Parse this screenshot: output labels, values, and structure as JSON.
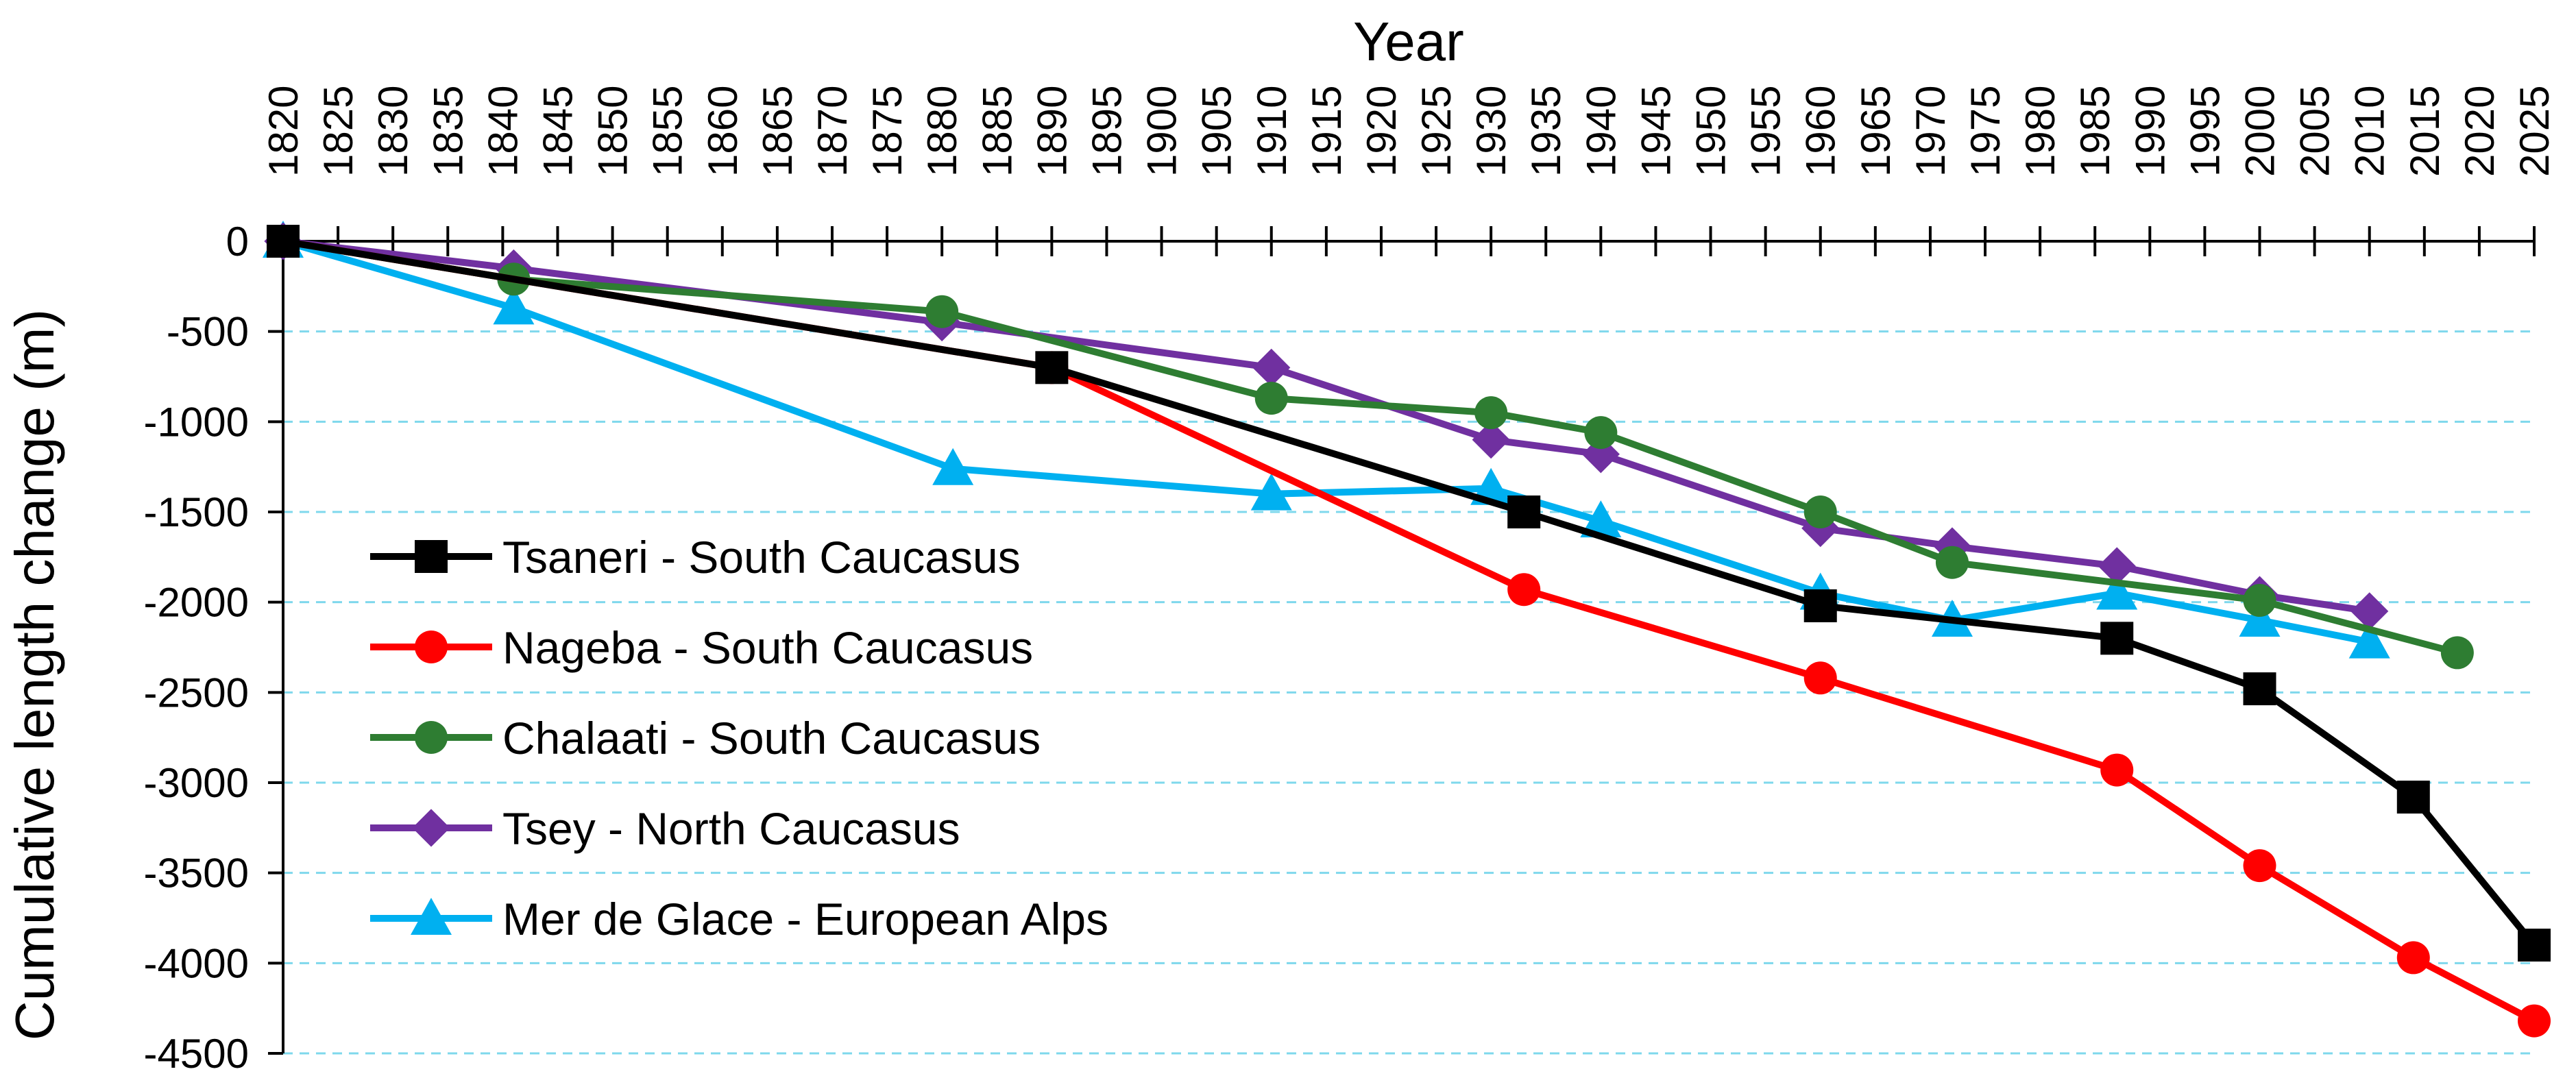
{
  "chart_data": {
    "type": "line",
    "title": "",
    "xlabel": "Year",
    "ylabel": "Cumulative length change (m)",
    "xlim": [
      1820,
      2025
    ],
    "ylim": [
      -4500,
      0
    ],
    "x_axis_position": "top",
    "x_ticks": [
      1820,
      1825,
      1830,
      1835,
      1840,
      1845,
      1850,
      1855,
      1860,
      1865,
      1870,
      1875,
      1880,
      1885,
      1890,
      1895,
      1900,
      1905,
      1910,
      1915,
      1920,
      1925,
      1930,
      1935,
      1940,
      1945,
      1950,
      1955,
      1960,
      1965,
      1970,
      1975,
      1980,
      1985,
      1990,
      1995,
      2000,
      2005,
      2010,
      2015,
      2020,
      2025
    ],
    "y_ticks": [
      0,
      -500,
      -1000,
      -1500,
      -2000,
      -2500,
      -3000,
      -3500,
      -4000,
      -4500
    ],
    "grid": "horizontal-dashed",
    "legend_position": "lower-left",
    "series": [
      {
        "name": "Tsaneri - South Caucasus",
        "color": "#000000",
        "marker": "square",
        "points": [
          [
            1820,
            0
          ],
          [
            1890,
            -700
          ],
          [
            1933,
            -1500
          ],
          [
            1960,
            -2020
          ],
          [
            1987,
            -2200
          ],
          [
            2000,
            -2480
          ],
          [
            2014,
            -3080
          ],
          [
            2025,
            -3900
          ]
        ]
      },
      {
        "name": "Nageba - South Caucasus",
        "color": "#ff0000",
        "marker": "circle",
        "points": [
          [
            1820,
            0
          ],
          [
            1890,
            -700
          ],
          [
            1933,
            -1930
          ],
          [
            1960,
            -2420
          ],
          [
            1987,
            -2930
          ],
          [
            2000,
            -3460
          ],
          [
            2014,
            -3970
          ],
          [
            2025,
            -4320
          ]
        ]
      },
      {
        "name": "Chalaati - South Caucasus",
        "color": "#2e7d32",
        "marker": "circle",
        "points": [
          [
            1820,
            0
          ],
          [
            1841,
            -210
          ],
          [
            1880,
            -390
          ],
          [
            1910,
            -870
          ],
          [
            1930,
            -950
          ],
          [
            1940,
            -1060
          ],
          [
            1960,
            -1500
          ],
          [
            1972,
            -1780
          ],
          [
            2000,
            -1990
          ],
          [
            2018,
            -2280
          ]
        ]
      },
      {
        "name": "Tsey - North Caucasus",
        "color": "#7030a0",
        "marker": "diamond",
        "points": [
          [
            1820,
            0
          ],
          [
            1841,
            -150
          ],
          [
            1880,
            -450
          ],
          [
            1910,
            -700
          ],
          [
            1930,
            -1100
          ],
          [
            1940,
            -1180
          ],
          [
            1960,
            -1590
          ],
          [
            1972,
            -1690
          ],
          [
            1987,
            -1800
          ],
          [
            2000,
            -1960
          ],
          [
            2010,
            -2050
          ]
        ]
      },
      {
        "name": "Mer de Glace - European Alps",
        "color": "#00b0f0",
        "marker": "triangle",
        "points": [
          [
            1820,
            0
          ],
          [
            1841,
            -370
          ],
          [
            1881,
            -1260
          ],
          [
            1910,
            -1400
          ],
          [
            1930,
            -1370
          ],
          [
            1940,
            -1550
          ],
          [
            1960,
            -1950
          ],
          [
            1972,
            -2100
          ],
          [
            1987,
            -1950
          ],
          [
            2000,
            -2100
          ],
          [
            2010,
            -2220
          ]
        ]
      }
    ]
  }
}
